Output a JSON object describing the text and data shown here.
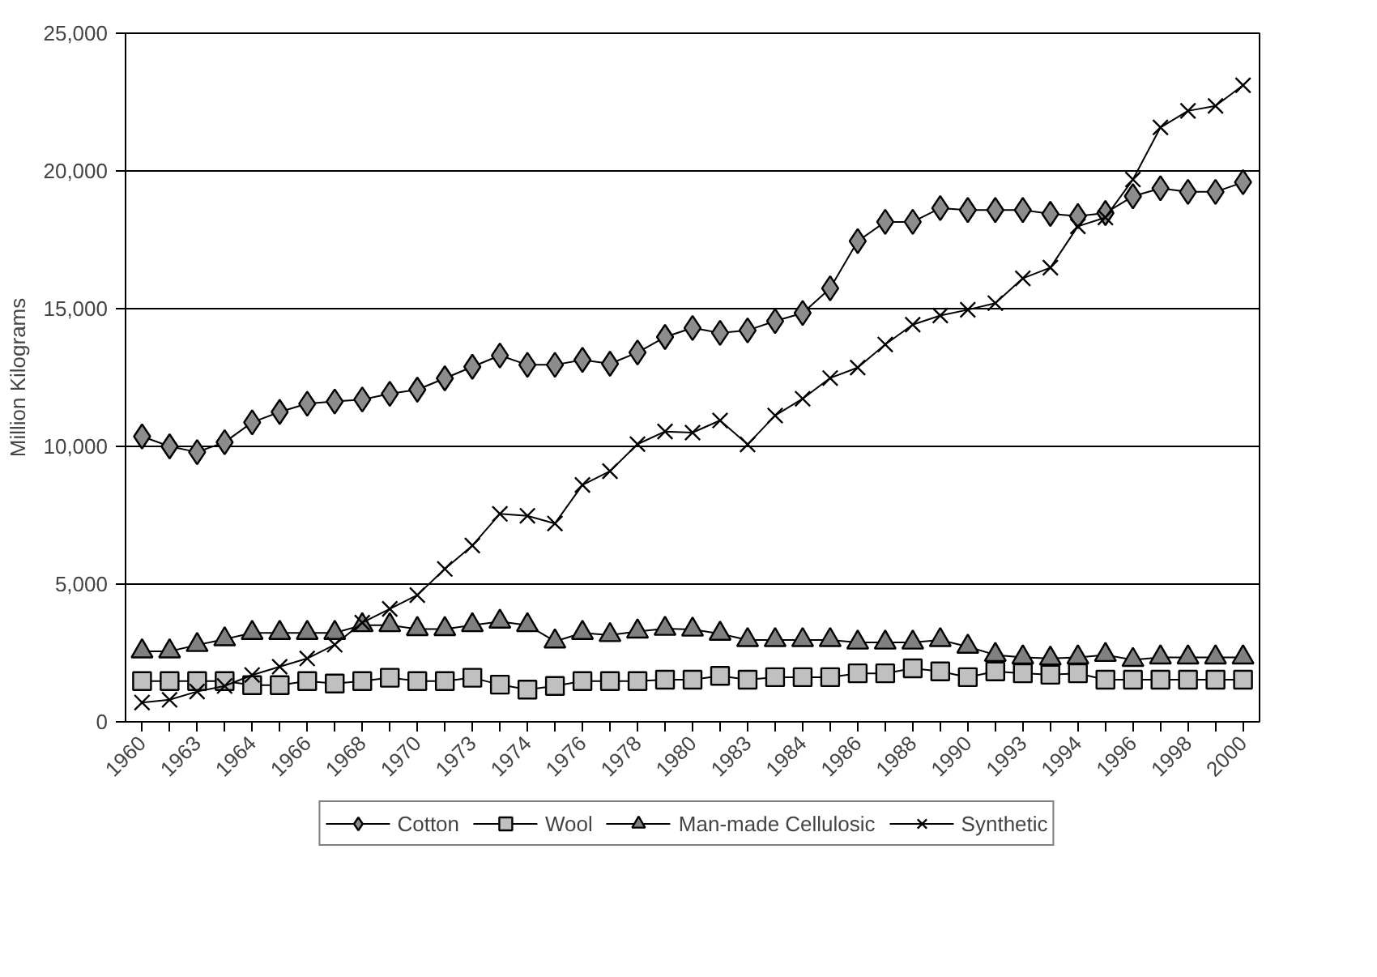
{
  "chart_data": {
    "type": "line",
    "ylabel": "Million Kilograms",
    "categories": [
      "1960",
      null,
      "1963",
      null,
      "1964",
      null,
      "1966",
      null,
      "1968",
      null,
      "1970",
      null,
      "1973",
      null,
      "1974",
      null,
      "1976",
      null,
      "1978",
      null,
      "1980",
      null,
      "1983",
      null,
      "1984",
      null,
      "1986",
      null,
      "1988",
      null,
      "1990",
      null,
      "1993",
      null,
      "1994",
      null,
      "1996",
      null,
      "1998",
      null,
      "2000"
    ],
    "series": [
      {
        "name": "Cotton",
        "color": "#8c8c8c",
        "marker": "diamond",
        "values": [
          10360,
          10000,
          9790,
          10150,
          10870,
          11250,
          11550,
          11630,
          11700,
          11910,
          12060,
          12470,
          12890,
          13300,
          12960,
          12960,
          13140,
          13000,
          13410,
          13970,
          14300,
          14120,
          14210,
          14550,
          14840,
          15740,
          17450,
          18150,
          18150,
          18650,
          18580,
          18580,
          18580,
          18440,
          18360,
          18470,
          19080,
          19370,
          19240,
          19240,
          19590
        ]
      },
      {
        "name": "Wool",
        "color": "#c0c0c0",
        "marker": "square",
        "values": [
          1480,
          1480,
          1480,
          1480,
          1330,
          1330,
          1480,
          1390,
          1480,
          1600,
          1480,
          1480,
          1600,
          1350,
          1170,
          1300,
          1480,
          1480,
          1480,
          1530,
          1530,
          1670,
          1530,
          1620,
          1620,
          1620,
          1760,
          1760,
          1940,
          1830,
          1620,
          1830,
          1760,
          1710,
          1760,
          1530,
          1530,
          1530,
          1530,
          1530,
          1530
        ]
      },
      {
        "name": "Man-made Cellulosic",
        "color": "#808080",
        "marker": "triangle",
        "values": [
          2560,
          2560,
          2790,
          3000,
          3230,
          3230,
          3230,
          3230,
          3510,
          3510,
          3370,
          3370,
          3510,
          3640,
          3510,
          2920,
          3230,
          3150,
          3280,
          3380,
          3350,
          3200,
          2970,
          2970,
          2970,
          2970,
          2880,
          2880,
          2880,
          2970,
          2730,
          2430,
          2340,
          2300,
          2340,
          2430,
          2250,
          2340,
          2340,
          2340,
          2340
        ]
      },
      {
        "name": "Synthetic",
        "color": "#000000",
        "marker": "cross",
        "values": [
          700,
          800,
          1100,
          1300,
          1700,
          2000,
          2300,
          2800,
          3600,
          4100,
          4600,
          5550,
          6400,
          7550,
          7480,
          7200,
          8600,
          9100,
          10080,
          10540,
          10500,
          10940,
          10070,
          11120,
          11730,
          12480,
          12860,
          13700,
          14420,
          14750,
          14960,
          15200,
          16100,
          16490,
          17990,
          18310,
          19690,
          21580,
          22180,
          22360,
          23110
        ]
      }
    ],
    "ylim": [
      0,
      25000
    ],
    "yticks": [
      0,
      {
        "value": 5000,
        "label": "5,000"
      },
      {
        "value": 10000,
        "label": "10,000"
      },
      {
        "value": 15000,
        "label": "15,000"
      },
      {
        "value": 20000,
        "label": "20,000"
      },
      {
        "value": 25000,
        "label": "25,000"
      }
    ],
    "grid": "y",
    "legend": "bottom"
  }
}
